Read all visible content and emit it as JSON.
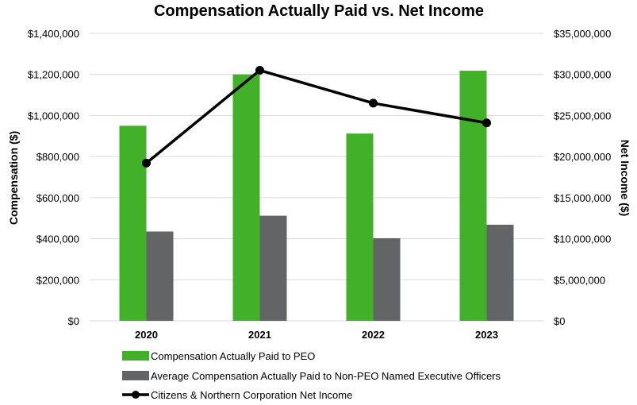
{
  "chart_data": {
    "type": "bar",
    "title": "Compensation Actually Paid vs. Net Income",
    "categories": [
      "2020",
      "2021",
      "2022",
      "2023"
    ],
    "ylabel": "Compensation ($)",
    "ylabel_right": "Net Income ($)",
    "ylim": [
      0,
      1400000
    ],
    "ylim_right": [
      0,
      35000000
    ],
    "yticks": [
      "$0",
      "$200,000",
      "$400,000",
      "$600,000",
      "$800,000",
      "$1,000,000",
      "$1,200,000",
      "$1,400,000"
    ],
    "yticks_right": [
      "$0",
      "$5,000,000",
      "$10,000,000",
      "$15,000,000",
      "$20,000,000",
      "$25,000,000",
      "$30,000,000",
      "$35,000,000"
    ],
    "grid": true,
    "legend_position": "bottom",
    "series": [
      {
        "name": "Compensation Actually Paid to PEO",
        "kind": "bar",
        "axis": "left",
        "color": "#43b02a",
        "values": [
          950000,
          1200000,
          912000,
          1218000
        ]
      },
      {
        "name": "Average Compensation Actually Paid to Non-PEO Named Executive Officers",
        "kind": "bar",
        "axis": "left",
        "color": "#636466",
        "values": [
          435000,
          512000,
          402000,
          468000
        ]
      },
      {
        "name": "Citizens & Northern Corporation Net Income",
        "kind": "line",
        "axis": "right",
        "color": "#000000",
        "values": [
          19200000,
          30500000,
          26500000,
          24100000
        ]
      }
    ]
  }
}
